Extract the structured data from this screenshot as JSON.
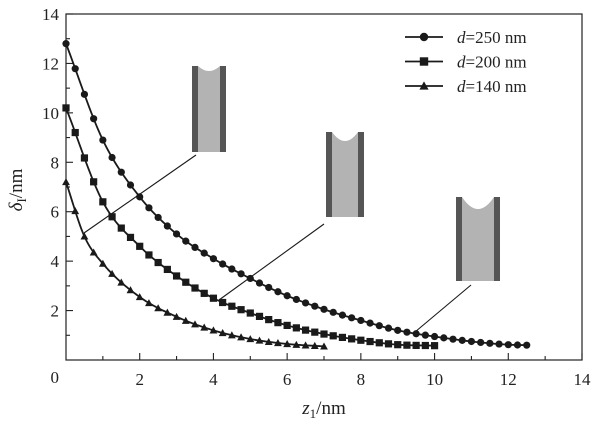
{
  "chart_data": {
    "type": "line",
    "xlabel_main": "z",
    "xlabel_sub": "1",
    "xlabel_unit": "/nm",
    "ylabel_main": "δ",
    "ylabel_sub": "I",
    "ylabel_unit": "/nm",
    "xlim": [
      0,
      14
    ],
    "ylim": [
      0,
      14
    ],
    "xticks": [
      "2",
      "4",
      "6",
      "8",
      "10",
      "12",
      "14"
    ],
    "yticks": [
      "2",
      "4",
      "6",
      "8",
      "10",
      "12",
      "14"
    ],
    "origin_label": "0",
    "grid": false,
    "legend_position": "top-right",
    "series": [
      {
        "name_prefix": "d",
        "name_suffix": "=250 nm",
        "marker": "circle",
        "x": [
          0.0,
          1.0,
          2.0,
          3.0,
          4.0,
          5.0,
          6.0,
          7.0,
          8.0,
          9.0,
          10.0,
          11.0,
          12.0,
          12.5
        ],
        "y": [
          12.8,
          8.9,
          6.6,
          5.1,
          4.1,
          3.3,
          2.6,
          2.05,
          1.6,
          1.2,
          0.95,
          0.75,
          0.62,
          0.6
        ]
      },
      {
        "name_prefix": "d",
        "name_suffix": "=200 nm",
        "marker": "square",
        "x": [
          0.0,
          1.0,
          2.0,
          3.0,
          4.0,
          5.0,
          6.0,
          7.0,
          8.0,
          9.0,
          10.0
        ],
        "y": [
          10.2,
          6.4,
          4.6,
          3.4,
          2.5,
          1.9,
          1.4,
          1.05,
          0.8,
          0.62,
          0.58
        ]
      },
      {
        "name_prefix": "d",
        "name_suffix": "=140 nm",
        "marker": "triangle",
        "x": [
          0.0,
          0.5,
          1.0,
          2.0,
          3.0,
          4.0,
          5.0,
          6.0,
          7.0
        ],
        "y": [
          7.2,
          5.0,
          3.9,
          2.55,
          1.75,
          1.2,
          0.85,
          0.65,
          0.55
        ]
      }
    ]
  },
  "colors": {
    "series": "#1a1a1a",
    "pore_wall": "#555555",
    "pore_fill": "#b3b3b3",
    "meniscus": "#ffffff"
  }
}
